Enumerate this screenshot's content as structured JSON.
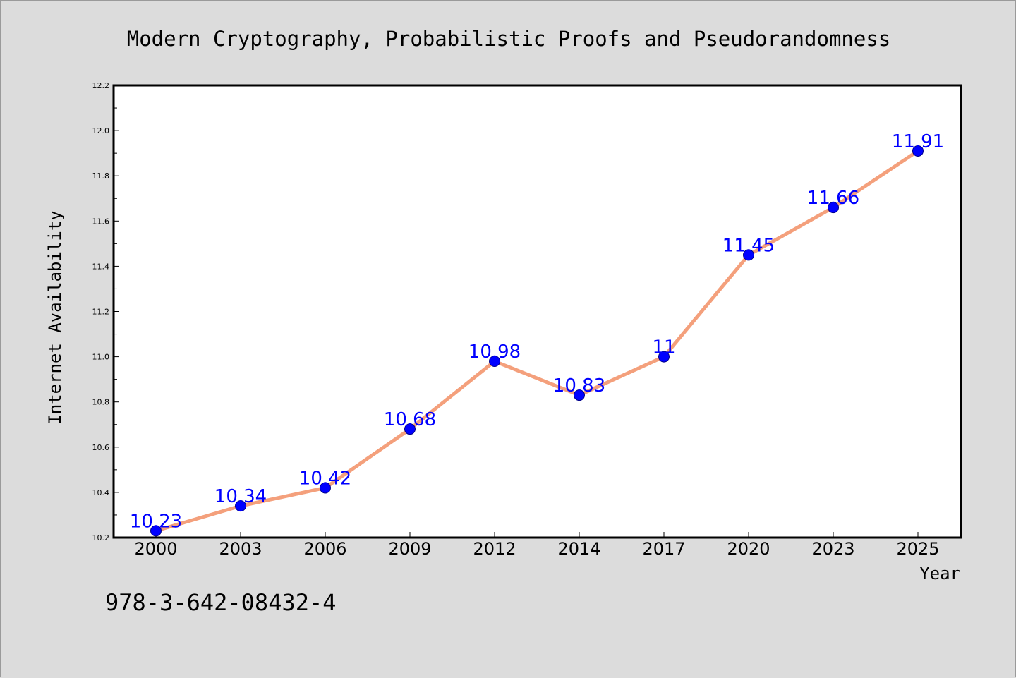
{
  "chart_data": {
    "type": "line",
    "title": "Modern Cryptography, Probabilistic Proofs and Pseudorandomness",
    "xlabel": "Year",
    "ylabel": "Internet Availability",
    "categories": [
      "2000",
      "2003",
      "2006",
      "2009",
      "2012",
      "2014",
      "2017",
      "2020",
      "2023",
      "2025"
    ],
    "series": [
      {
        "values": [
          10.23,
          10.34,
          10.42,
          10.68,
          10.98,
          10.83,
          11,
          11.45,
          11.66,
          11.91
        ],
        "data_labels": [
          "10.23",
          "10.34",
          "10.42",
          "10.68",
          "10.98",
          "10.83",
          "11",
          "11.45",
          "11.66",
          "11.91"
        ],
        "line_color": "#f4a07c",
        "marker_color": "#0000ff",
        "label_color": "#0000ff"
      }
    ],
    "ylim": [
      10.2,
      12.2
    ],
    "yticks": [
      "10.2",
      "10.4",
      "10.6",
      "10.8",
      "11.0",
      "11.2",
      "11.4",
      "11.6",
      "11.8",
      "12.0",
      "12.2"
    ],
    "grid": false,
    "legend": "none"
  },
  "footer": {
    "isbn": "978-3-642-08432-4"
  },
  "colors": {
    "background": "#dcdcdc",
    "plot_background": "#ffffff",
    "axes": "#000000"
  }
}
